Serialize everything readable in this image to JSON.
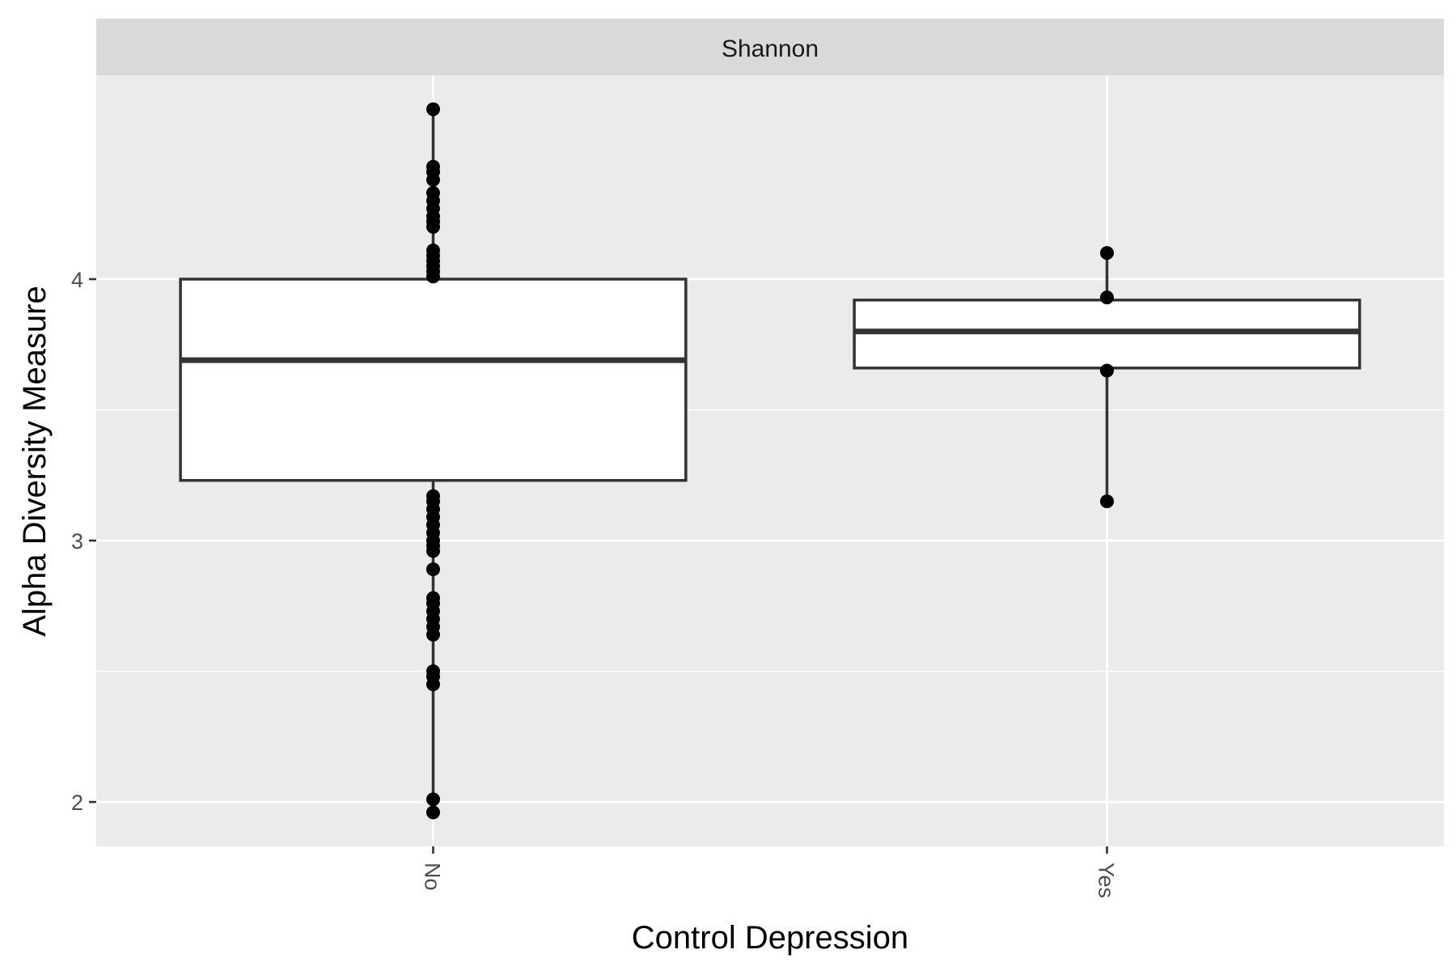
{
  "chart_data": {
    "type": "box",
    "facet": "Shannon",
    "xlabel": "Control Depression",
    "ylabel": "Alpha Diversity Measure",
    "categories": [
      "No",
      "Yes"
    ],
    "y_ticks": [
      2,
      3,
      4
    ],
    "y_tick_labels": [
      "2",
      "3",
      "4"
    ],
    "ylim": [
      1.83,
      4.78
    ],
    "grid": true,
    "boxes": [
      {
        "category": "No",
        "min": 1.96,
        "q1": 3.23,
        "median": 3.69,
        "q3": 4.0,
        "max": 4.65,
        "points": [
          4.65,
          4.43,
          4.41,
          4.38,
          4.33,
          4.3,
          4.27,
          4.24,
          4.22,
          4.2,
          4.11,
          4.09,
          4.07,
          4.05,
          4.03,
          4.01,
          3.17,
          3.15,
          3.12,
          3.09,
          3.06,
          3.03,
          3.0,
          2.98,
          2.96,
          2.89,
          2.78,
          2.76,
          2.73,
          2.7,
          2.67,
          2.64,
          2.5,
          2.48,
          2.45,
          2.01,
          1.96
        ]
      },
      {
        "category": "Yes",
        "min": 3.15,
        "q1": 3.66,
        "median": 3.8,
        "q3": 3.92,
        "max": 4.1,
        "points": [
          4.1,
          3.93,
          3.65,
          3.15
        ]
      }
    ],
    "colors": {
      "panel": "#EBEBEB",
      "strip": "#D9D9D9",
      "grid": "#FFFFFF",
      "box_fill": "#FFFFFF",
      "box_line": "#333333",
      "point": "#000000"
    }
  }
}
